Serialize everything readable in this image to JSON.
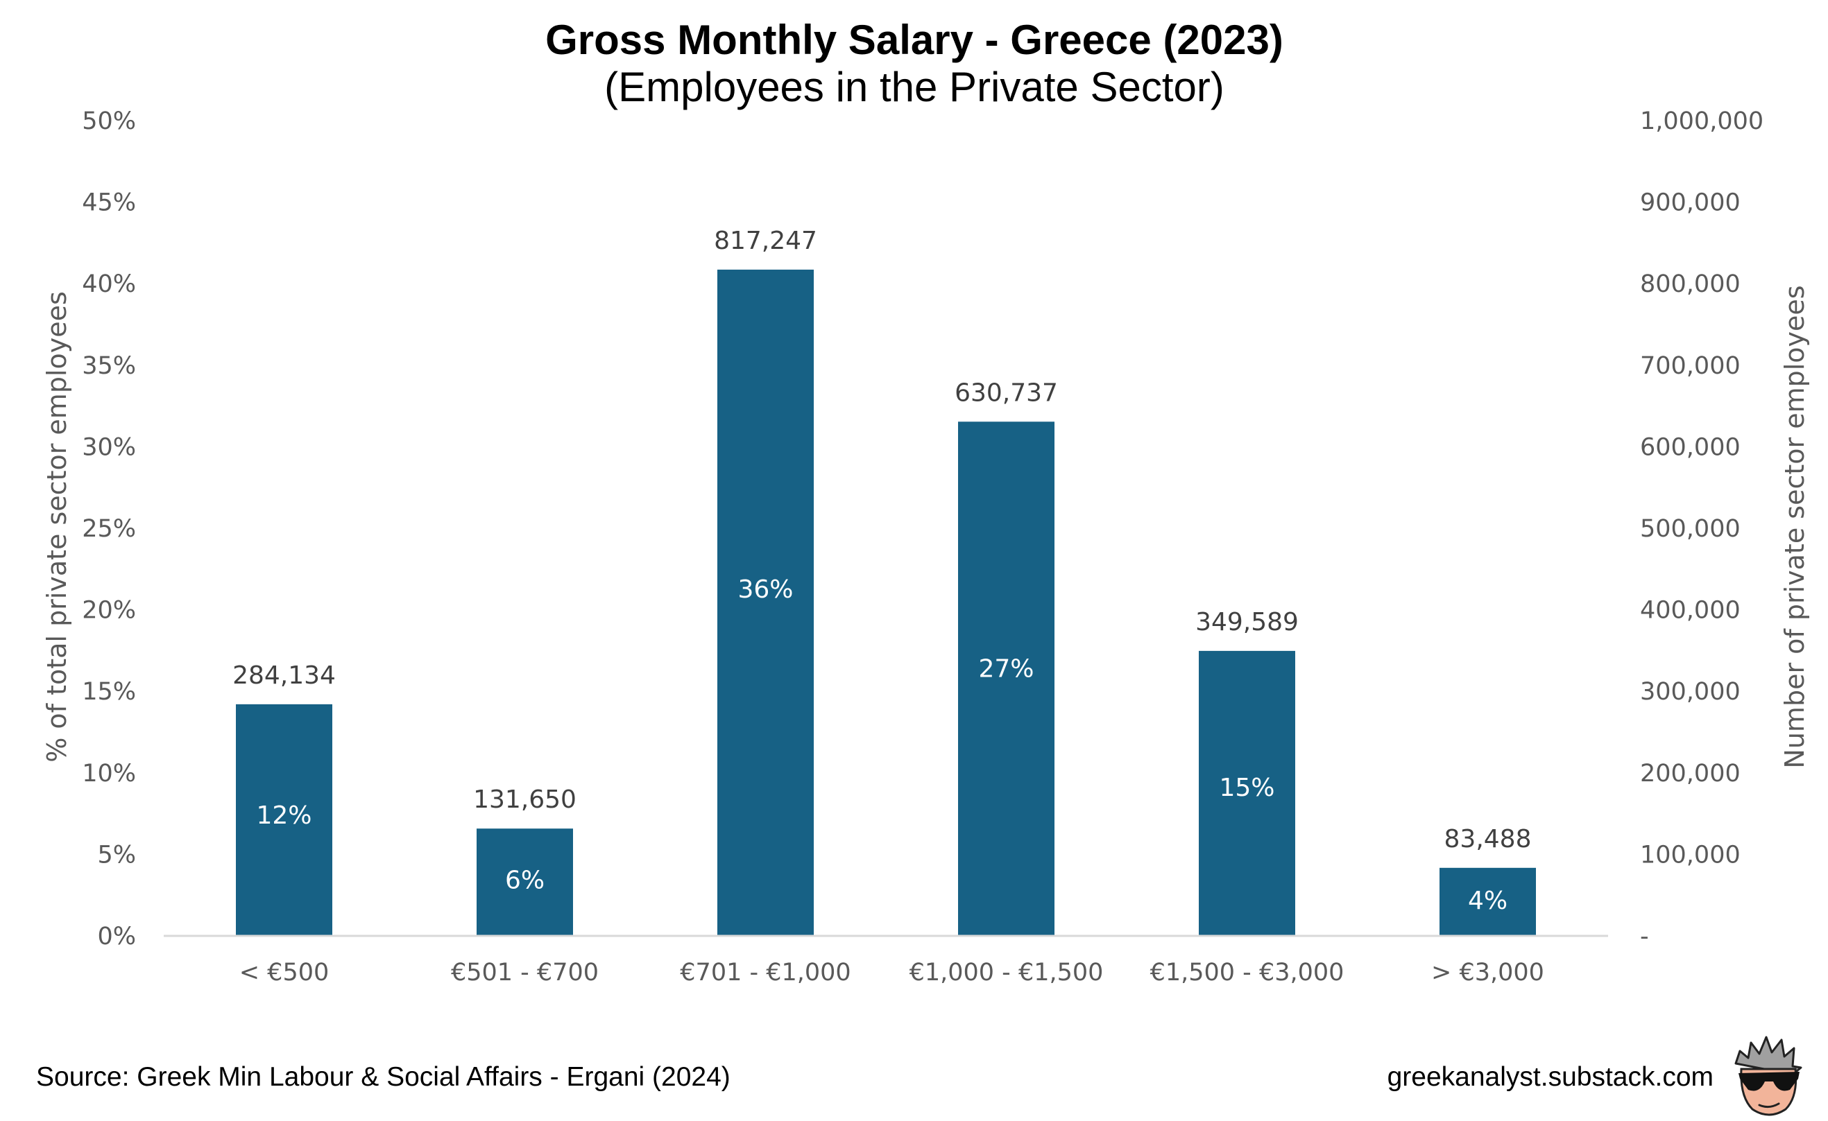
{
  "chart_data": {
    "type": "bar",
    "title": "Gross Monthly Salary - Greece (2023)",
    "subtitle": "(Employees in the Private Sector)",
    "categories": [
      "< €500",
      "€501 - €700",
      "€701 - €1,000",
      "€1,000 - €1,500",
      "€1,500 - €3,000",
      "> €3,000"
    ],
    "values": [
      284134,
      131650,
      817247,
      630737,
      349589,
      83488
    ],
    "percent_labels": [
      "12%",
      "6%",
      "36%",
      "27%",
      "15%",
      "4%"
    ],
    "value_labels": [
      "284,134",
      "131,650",
      "817,247",
      "630,737",
      "349,589",
      "83,488"
    ],
    "y_left_label": "% of total private sector employees",
    "y_right_label": "Number of private sector employees",
    "y_left_ticks": [
      "0%",
      "5%",
      "10%",
      "15%",
      "20%",
      "25%",
      "30%",
      "35%",
      "40%",
      "45%",
      "50%"
    ],
    "y_right_ticks": [
      "-",
      "100,000",
      "200,000",
      "300,000",
      "400,000",
      "500,000",
      "600,000",
      "700,000",
      "800,000",
      "900,000",
      "1,000,000"
    ],
    "y_right_range": [
      0,
      1000000
    ],
    "bar_color": "#176185",
    "grid": false,
    "legend": "none"
  },
  "footer": {
    "source": "Source: Greek Min Labour & Social Affairs - Ergani (2024)",
    "site": "greekanalyst.substack.com"
  },
  "logo": {
    "icon": "sunglasses-avatar-icon"
  }
}
